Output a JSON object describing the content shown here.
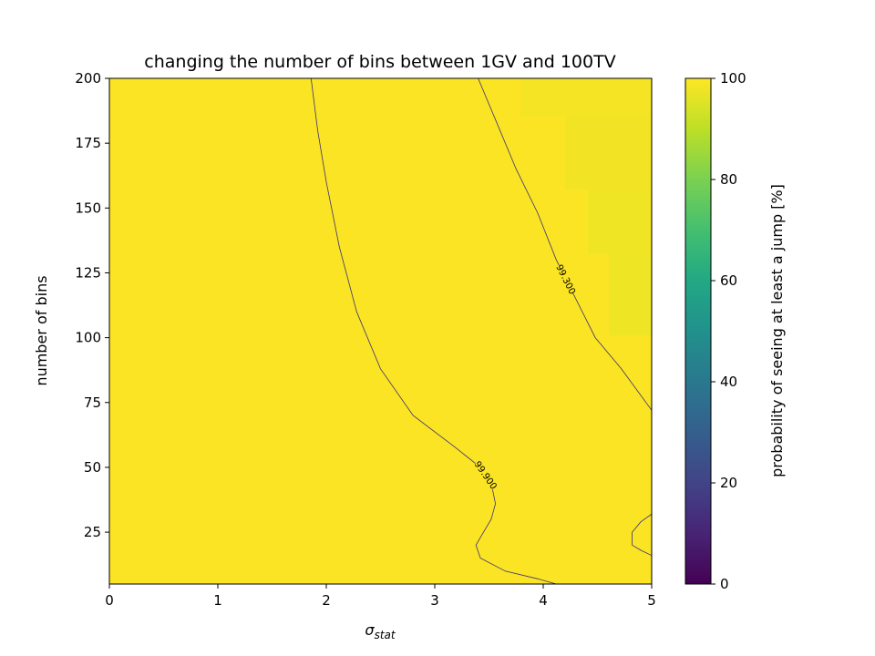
{
  "chart_data": {
    "type": "heatmap",
    "title": "changing the number of bins between 1GV and 100TV",
    "xlabel_symbol": "σ",
    "xlabel_subscript": "stat",
    "ylabel": "number of bins",
    "xlim": [
      0,
      5
    ],
    "ylim": [
      5,
      200
    ],
    "x_ticks": [
      0,
      1,
      2,
      3,
      4,
      5
    ],
    "y_ticks": [
      25,
      50,
      75,
      100,
      125,
      150,
      175,
      200
    ],
    "colorbar": {
      "label": "probability of seeing at least a jump [%]",
      "colormap": "viridis",
      "range": [
        0,
        100
      ],
      "ticks": [
        0,
        20,
        40,
        60,
        80,
        100
      ]
    },
    "field_colors": {
      "high": "#fbe423",
      "slightly_lower": "#f2e424",
      "lower": "#eee524"
    },
    "contours": [
      {
        "level": 99.9,
        "label": "99.900",
        "points": [
          [
            1.86,
            200
          ],
          [
            1.92,
            180
          ],
          [
            2.0,
            160
          ],
          [
            2.12,
            135
          ],
          [
            2.28,
            110
          ],
          [
            2.5,
            88
          ],
          [
            2.8,
            70
          ],
          [
            3.18,
            58
          ],
          [
            3.42,
            50
          ],
          [
            3.52,
            44
          ],
          [
            3.56,
            36
          ],
          [
            3.52,
            30
          ],
          [
            3.45,
            25
          ],
          [
            3.38,
            20
          ],
          [
            3.42,
            15
          ],
          [
            3.65,
            10
          ],
          [
            3.95,
            7
          ],
          [
            4.12,
            5
          ]
        ]
      },
      {
        "level": 99.3,
        "label": "99.300",
        "points": [
          [
            3.4,
            200
          ],
          [
            3.55,
            185
          ],
          [
            3.75,
            165
          ],
          [
            3.95,
            148
          ],
          [
            4.12,
            130
          ],
          [
            4.3,
            115
          ],
          [
            4.48,
            100
          ],
          [
            4.72,
            88
          ],
          [
            5.0,
            72
          ]
        ]
      },
      {
        "level": 99.3,
        "label": "",
        "points": [
          [
            5.0,
            32
          ],
          [
            4.9,
            29
          ],
          [
            4.82,
            25
          ],
          [
            4.82,
            20
          ],
          [
            4.9,
            18
          ],
          [
            5.0,
            16
          ]
        ]
      }
    ]
  }
}
